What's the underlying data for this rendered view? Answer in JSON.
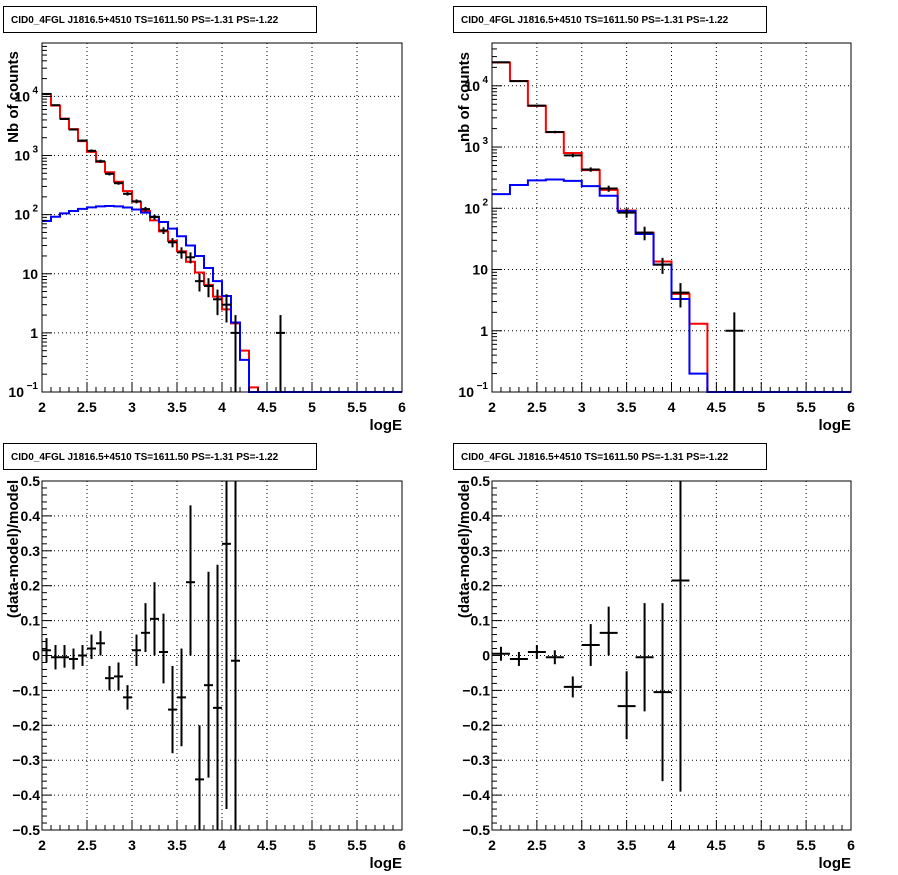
{
  "chart_data": [
    {
      "panel": "top-left",
      "type": "histogram",
      "title": "CID0_4FGL J1816.5+4510 TS=1611.50 PS=-1.31 PS=-1.22",
      "xlabel": "logE",
      "ylabel": "Nb of counts",
      "xlim": [
        2,
        6
      ],
      "ylim": [
        0.1,
        80000
      ],
      "yscale": "log",
      "grid": true,
      "xticks": [
        "2",
        "2.5",
        "3",
        "3.5",
        "4",
        "4.5",
        "5",
        "5.5",
        "6"
      ],
      "yticks": [
        {
          "v": 0.1,
          "label": "10^-1"
        },
        {
          "v": 1,
          "label": "1"
        },
        {
          "v": 10,
          "label": "10"
        },
        {
          "v": 100,
          "label": "10^2"
        },
        {
          "v": 1000,
          "label": "10^3"
        },
        {
          "v": 10000,
          "label": "10^4"
        }
      ],
      "bin_edges": [
        2.0,
        2.1,
        2.2,
        2.3,
        2.4,
        2.5,
        2.6,
        2.7,
        2.8,
        2.9,
        3.0,
        3.1,
        3.2,
        3.3,
        3.4,
        3.5,
        3.6,
        3.7,
        3.8,
        3.9,
        4.0,
        4.1,
        4.2,
        4.3,
        4.4,
        4.5,
        4.6,
        4.7,
        4.8,
        4.9,
        5.0,
        5.1,
        5.2,
        5.3,
        5.4,
        5.5,
        5.6,
        5.7,
        5.8,
        5.9,
        6.0
      ],
      "series": [
        {
          "color": "#ff0000",
          "values": [
            11000,
            7000,
            4200,
            2800,
            1750,
            1150,
            780,
            520,
            360,
            250,
            165,
            115,
            80,
            52,
            36,
            24,
            16,
            10.5,
            6.5,
            4.1,
            2.5,
            1.45,
            0.5,
            0.12,
            0.1,
            0.1,
            0.1,
            0.1,
            0.1,
            0.1,
            0.1,
            0.1,
            0.1,
            0.1,
            0.1,
            0.1,
            0.1,
            0.1,
            0.1,
            0.1
          ]
        },
        {
          "color": "#0000ff",
          "values": [
            78,
            92,
            105,
            115,
            125,
            133,
            138,
            140,
            138,
            132,
            122,
            108,
            92,
            75,
            58,
            43,
            30,
            20,
            12.5,
            7.5,
            4.2,
            1.5,
            0.35,
            0.1,
            0.1,
            0.1,
            0.1,
            0.1,
            0.1,
            0.1,
            0.1,
            0.1,
            0.1,
            0.1,
            0.1,
            0.1,
            0.1,
            0.1,
            0.1,
            0.1
          ]
        }
      ],
      "points": {
        "x": [
          2.05,
          2.15,
          2.25,
          2.35,
          2.45,
          2.55,
          2.65,
          2.75,
          2.85,
          2.95,
          3.05,
          3.15,
          3.25,
          3.35,
          3.45,
          3.55,
          3.65,
          3.75,
          3.85,
          3.95,
          4.05,
          4.15,
          4.65
        ],
        "y": [
          11000,
          7100,
          4150,
          2750,
          1790,
          1200,
          800,
          490,
          340,
          225,
          168,
          124,
          91,
          54,
          34,
          23,
          19,
          7.5,
          6.2,
          3.7,
          3.0,
          1.0,
          1.0
        ],
        "ylo": [
          10800,
          6950,
          4030,
          2650,
          1710,
          1130,
          750,
          460,
          320,
          210,
          155,
          113,
          82,
          47,
          28,
          18,
          15,
          5.0,
          4.0,
          2.0,
          1.5,
          0.1,
          0.1
        ],
        "yhi": [
          11200,
          7250,
          4270,
          2850,
          1870,
          1270,
          850,
          520,
          360,
          240,
          181,
          135,
          100,
          61,
          40,
          28,
          23,
          10,
          8.4,
          5.4,
          4.5,
          2.0,
          2.0
        ]
      }
    },
    {
      "panel": "top-right",
      "type": "histogram",
      "title": "CID0_4FGL J1816.5+4510 TS=1611.50 PS=-1.31 PS=-1.22",
      "xlabel": "logE",
      "ylabel": "nb of counts",
      "xlim": [
        2,
        6
      ],
      "ylim": [
        0.1,
        50000
      ],
      "yscale": "log",
      "grid": true,
      "xticks": [
        "2",
        "2.5",
        "3",
        "3.5",
        "4",
        "4.5",
        "5",
        "5.5",
        "6"
      ],
      "yticks": [
        {
          "v": 0.1,
          "label": "10^-1"
        },
        {
          "v": 1,
          "label": "1"
        },
        {
          "v": 10,
          "label": "10"
        },
        {
          "v": 100,
          "label": "10^2"
        },
        {
          "v": 1000,
          "label": "10^3"
        },
        {
          "v": 10000,
          "label": "10^4"
        }
      ],
      "bin_edges": [
        2.0,
        2.2,
        2.4,
        2.6,
        2.8,
        3.0,
        3.2,
        3.4,
        3.6,
        3.8,
        4.0,
        4.2,
        4.4,
        4.6,
        4.8,
        5.0,
        5.2,
        5.4,
        5.6,
        5.8,
        6.0
      ],
      "series": [
        {
          "color": "#ff0000",
          "values": [
            24000,
            12000,
            4700,
            1750,
            800,
            420,
            200,
            92,
            40,
            13.5,
            4,
            1.3,
            0.1,
            0.1,
            0.1,
            0.1,
            0.1,
            0.1,
            0.1,
            0.1
          ]
        },
        {
          "color": "#0000ff",
          "values": [
            170,
            240,
            285,
            295,
            280,
            230,
            160,
            90,
            38,
            12,
            3.3,
            0.2,
            0.1,
            0.1,
            0.1,
            0.1,
            0.1,
            0.1,
            0.1,
            0.1
          ]
        }
      ],
      "points": {
        "x": [
          2.1,
          2.3,
          2.5,
          2.7,
          2.9,
          3.1,
          3.3,
          3.5,
          3.7,
          3.9,
          4.1,
          4.7
        ],
        "y": [
          24300,
          11900,
          4750,
          1760,
          730,
          430,
          210,
          85,
          40,
          12,
          4.2,
          1.0
        ],
        "ylo": [
          24000,
          11700,
          4620,
          1680,
          680,
          395,
          186,
          70,
          30,
          8.5,
          2.4,
          0.1
        ],
        "yhi": [
          24600,
          12100,
          4880,
          1840,
          780,
          465,
          234,
          100,
          50,
          15.5,
          6.0,
          2.0
        ]
      }
    },
    {
      "panel": "bottom-left",
      "type": "scatter",
      "title": "CID0_4FGL J1816.5+4510 TS=1611.50 PS=-1.31 PS=-1.22",
      "xlabel": "logE",
      "ylabel": "(data-model)/model",
      "xlim": [
        2,
        6
      ],
      "ylim": [
        -0.5,
        0.5
      ],
      "yscale": "linear",
      "grid": true,
      "xticks": [
        "2",
        "2.5",
        "3",
        "3.5",
        "4",
        "4.5",
        "5",
        "5.5",
        "6"
      ],
      "yticks": [
        {
          "v": -0.5,
          "label": "−0.5"
        },
        {
          "v": -0.4,
          "label": "−0.4"
        },
        {
          "v": -0.3,
          "label": "−0.3"
        },
        {
          "v": -0.2,
          "label": "−0.2"
        },
        {
          "v": -0.1,
          "label": "−0.1"
        },
        {
          "v": 0,
          "label": "0"
        },
        {
          "v": 0.1,
          "label": "0.1"
        },
        {
          "v": 0.2,
          "label": "0.2"
        },
        {
          "v": 0.3,
          "label": "0.3"
        },
        {
          "v": 0.4,
          "label": "0.4"
        },
        {
          "v": 0.5,
          "label": "0.5"
        }
      ],
      "points": {
        "x": [
          2.05,
          2.15,
          2.25,
          2.35,
          2.45,
          2.55,
          2.65,
          2.75,
          2.85,
          2.95,
          3.05,
          3.15,
          3.25,
          3.35,
          3.45,
          3.55,
          3.65,
          3.75,
          3.85,
          3.95,
          4.05,
          4.15
        ],
        "y": [
          0.015,
          -0.005,
          -0.005,
          -0.01,
          0.0,
          0.02,
          0.035,
          -0.065,
          -0.06,
          -0.12,
          0.015,
          0.065,
          0.105,
          0.01,
          -0.155,
          -0.12,
          0.21,
          -0.355,
          -0.085,
          -0.15,
          0.32,
          -0.015
        ],
        "ylo": [
          -0.02,
          -0.04,
          -0.035,
          -0.04,
          -0.03,
          -0.01,
          0.0,
          -0.1,
          -0.1,
          -0.155,
          -0.03,
          0.01,
          0.0,
          -0.08,
          -0.28,
          -0.26,
          0.0,
          -0.5,
          -0.35,
          -0.5,
          -0.44,
          -0.5
        ],
        "yhi": [
          0.05,
          0.03,
          0.03,
          0.02,
          0.03,
          0.06,
          0.07,
          -0.03,
          -0.02,
          -0.085,
          0.06,
          0.15,
          0.21,
          0.12,
          -0.03,
          0.02,
          0.43,
          -0.2,
          0.24,
          0.26,
          0.5,
          0.5
        ]
      }
    },
    {
      "panel": "bottom-right",
      "type": "scatter",
      "title": "CID0_4FGL J1816.5+4510 TS=1611.50 PS=-1.31 PS=-1.22",
      "xlabel": "logE",
      "ylabel": "(data-model)/model",
      "xlim": [
        2,
        6
      ],
      "ylim": [
        -0.5,
        0.5
      ],
      "yscale": "linear",
      "grid": true,
      "xticks": [
        "2",
        "2.5",
        "3",
        "3.5",
        "4",
        "4.5",
        "5",
        "5.5",
        "6"
      ],
      "yticks": [
        {
          "v": -0.5,
          "label": "−0.5"
        },
        {
          "v": -0.4,
          "label": "−0.4"
        },
        {
          "v": -0.3,
          "label": "−0.3"
        },
        {
          "v": -0.2,
          "label": "−0.2"
        },
        {
          "v": -0.1,
          "label": "−0.1"
        },
        {
          "v": 0,
          "label": "0"
        },
        {
          "v": 0.1,
          "label": "0.1"
        },
        {
          "v": 0.2,
          "label": "0.2"
        },
        {
          "v": 0.3,
          "label": "0.3"
        },
        {
          "v": 0.4,
          "label": "0.4"
        },
        {
          "v": 0.5,
          "label": "0.5"
        }
      ],
      "points": {
        "x": [
          2.1,
          2.3,
          2.5,
          2.7,
          2.9,
          3.1,
          3.3,
          3.5,
          3.7,
          3.9,
          4.1
        ],
        "y": [
          0.005,
          -0.01,
          0.01,
          -0.005,
          -0.09,
          0.03,
          0.065,
          -0.145,
          -0.005,
          -0.105,
          0.215
        ],
        "ylo": [
          -0.015,
          -0.03,
          -0.01,
          -0.025,
          -0.12,
          -0.03,
          0.0,
          -0.24,
          -0.16,
          -0.36,
          -0.39
        ],
        "yhi": [
          0.025,
          0.01,
          0.03,
          0.015,
          -0.06,
          0.09,
          0.14,
          -0.045,
          0.15,
          0.15,
          0.5
        ]
      }
    }
  ]
}
